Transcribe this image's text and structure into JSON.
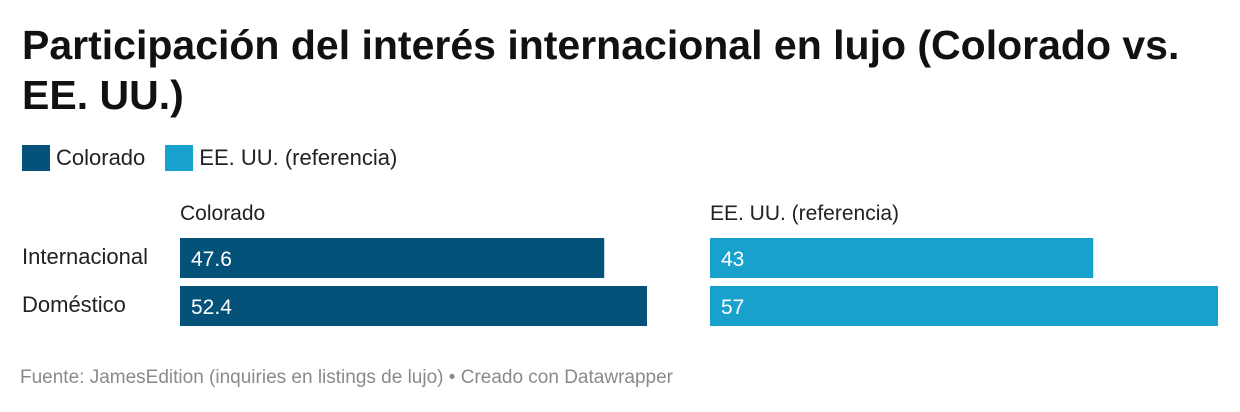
{
  "chart_data": {
    "type": "bar",
    "title": "Participación del interés internacional en lujo (Colorado vs. EE. UU.)",
    "categories": [
      "Internacional",
      "Doméstico"
    ],
    "series": [
      {
        "name": "Colorado",
        "values": [
          47.6,
          52.4
        ],
        "value_labels": [
          "47.6",
          "52.4"
        ],
        "color": "#04527a"
      },
      {
        "name": "EE. UU. (referencia)",
        "values": [
          43,
          57
        ],
        "value_labels": [
          "43",
          "57"
        ],
        "color": "#18a1cd"
      }
    ],
    "xlim": [
      0,
      57
    ],
    "legend": [
      {
        "label": "Colorado",
        "color": "#04527a"
      },
      {
        "label": "EE. UU. (referencia)",
        "color": "#18a1cd"
      }
    ],
    "grid": false,
    "legend_position": "top-left"
  },
  "footer": {
    "text": "Fuente: JamesEdition (inquiries en listings de lujo) • Creado con Datawrapper"
  }
}
